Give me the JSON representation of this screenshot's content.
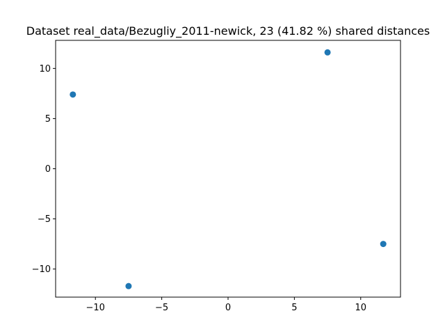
{
  "chart_data": {
    "type": "scatter",
    "title": "Dataset real_data/Bezugliy_2011-newick, 23 (41.82 %) shared distances",
    "xlabel": "",
    "ylabel": "",
    "xlim": [
      -13,
      13
    ],
    "ylim": [
      -12.8,
      12.8
    ],
    "xticks": [
      -10,
      -5,
      0,
      5,
      10
    ],
    "yticks": [
      -10,
      -5,
      0,
      5,
      10
    ],
    "xtick_labels": [
      "−10",
      "−5",
      "0",
      "5",
      "10"
    ],
    "ytick_labels": [
      "−10",
      "−5",
      "0",
      "5",
      "10"
    ],
    "grid": false,
    "color": "#1f77b4",
    "points": [
      {
        "x": -11.7,
        "y": 7.4
      },
      {
        "x": 7.5,
        "y": 11.6
      },
      {
        "x": 11.7,
        "y": -7.5
      },
      {
        "x": -7.5,
        "y": -11.7
      }
    ]
  }
}
